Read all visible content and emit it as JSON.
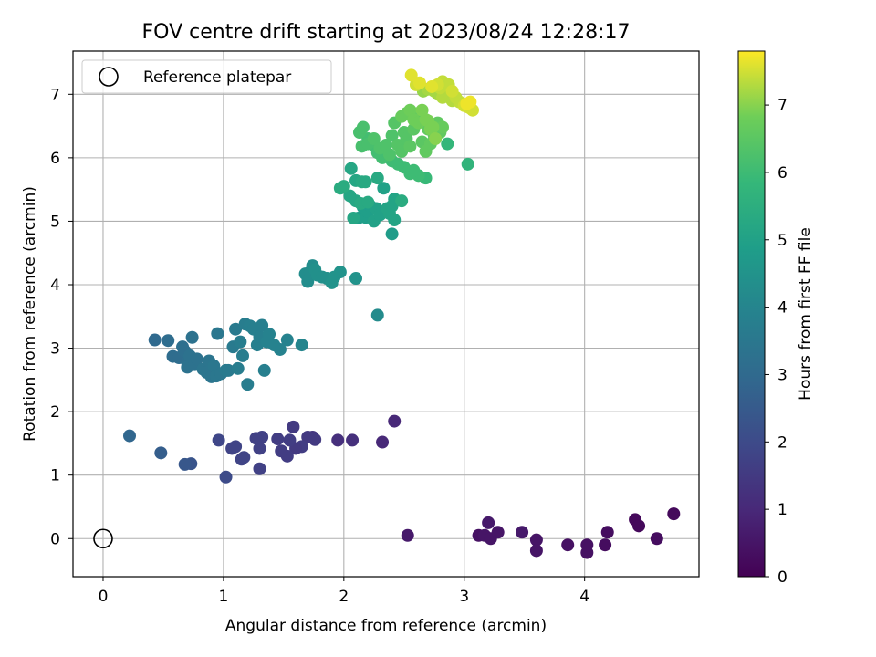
{
  "chart_data": {
    "type": "scatter",
    "title": "FOV centre drift starting at 2023/08/24 12:28:17",
    "xlabel": "Angular distance from reference (arcmin)",
    "ylabel": "Rotation from reference (arcmin)",
    "xlim": [
      -0.25,
      4.95
    ],
    "ylim": [
      -0.6,
      7.68
    ],
    "xticks": [
      0,
      1,
      2,
      3,
      4
    ],
    "yticks": [
      0,
      1,
      2,
      3,
      4,
      5,
      6,
      7
    ],
    "grid": true,
    "legend": {
      "position": "top-left",
      "entries": [
        "Reference platepar"
      ]
    },
    "colorbar": {
      "label": "Hours from first FF file",
      "range": [
        0,
        7.8
      ],
      "ticks": [
        0,
        1,
        2,
        3,
        4,
        5,
        6,
        7
      ],
      "colormap": "viridis"
    },
    "reference_point": {
      "name": "Reference platepar",
      "x": 0,
      "y": 0
    },
    "series": [
      {
        "color_by": "Hours from first FF file",
        "points": [
          [
            2.53,
            0.05,
            0.6
          ],
          [
            3.12,
            0.05,
            0.4
          ],
          [
            3.17,
            0.05,
            0.5
          ],
          [
            3.2,
            0.25,
            0.6
          ],
          [
            3.22,
            0.0,
            0.5
          ],
          [
            3.28,
            0.1,
            0.5
          ],
          [
            3.48,
            0.1,
            0.6
          ],
          [
            3.6,
            -0.02,
            0.5
          ],
          [
            3.6,
            -0.19,
            0.5
          ],
          [
            3.86,
            -0.1,
            0.4
          ],
          [
            4.02,
            -0.22,
            0.4
          ],
          [
            4.02,
            -0.1,
            0.4
          ],
          [
            4.17,
            -0.1,
            0.3
          ],
          [
            4.19,
            0.1,
            0.3
          ],
          [
            4.42,
            0.3,
            0.2
          ],
          [
            4.45,
            0.2,
            0.2
          ],
          [
            4.6,
            0.0,
            0.3
          ],
          [
            4.74,
            0.39,
            0.2
          ],
          [
            2.32,
            1.52,
            1.0
          ],
          [
            2.42,
            1.85,
            1.0
          ],
          [
            2.07,
            1.55,
            1.2
          ],
          [
            1.95,
            1.55,
            1.2
          ],
          [
            1.74,
            1.6,
            1.4
          ],
          [
            1.76,
            1.56,
            1.5
          ],
          [
            1.7,
            1.6,
            1.5
          ],
          [
            1.65,
            1.45,
            1.6
          ],
          [
            1.6,
            1.42,
            1.5
          ],
          [
            1.58,
            1.76,
            1.5
          ],
          [
            1.55,
            1.55,
            1.6
          ],
          [
            1.53,
            1.3,
            1.6
          ],
          [
            1.48,
            1.38,
            1.6
          ],
          [
            1.45,
            1.57,
            1.6
          ],
          [
            1.32,
            1.6,
            1.7
          ],
          [
            1.3,
            1.42,
            1.7
          ],
          [
            1.3,
            1.1,
            1.7
          ],
          [
            1.27,
            1.58,
            1.7
          ],
          [
            1.17,
            1.28,
            1.8
          ],
          [
            1.15,
            1.25,
            1.8
          ],
          [
            1.1,
            1.45,
            1.8
          ],
          [
            1.07,
            1.42,
            1.8
          ],
          [
            0.96,
            1.55,
            1.9
          ],
          [
            1.02,
            0.97,
            2.0
          ],
          [
            0.73,
            1.18,
            2.3
          ],
          [
            0.68,
            1.17,
            2.4
          ],
          [
            0.48,
            1.35,
            2.6
          ],
          [
            0.22,
            1.62,
            2.9
          ],
          [
            0.43,
            3.13,
            3.0
          ],
          [
            0.54,
            3.12,
            3.1
          ],
          [
            0.58,
            2.87,
            3.1
          ],
          [
            0.63,
            2.85,
            3.1
          ],
          [
            0.66,
            3.02,
            3.2
          ],
          [
            0.68,
            2.95,
            3.2
          ],
          [
            0.7,
            2.78,
            3.2
          ],
          [
            0.7,
            2.7,
            3.3
          ],
          [
            0.72,
            2.88,
            3.3
          ],
          [
            0.74,
            3.17,
            3.3
          ],
          [
            0.76,
            2.74,
            3.3
          ],
          [
            0.78,
            2.83,
            3.3
          ],
          [
            0.83,
            2.67,
            3.4
          ],
          [
            0.86,
            2.62,
            3.4
          ],
          [
            0.88,
            2.8,
            3.4
          ],
          [
            0.9,
            2.55,
            3.4
          ],
          [
            0.92,
            2.72,
            3.5
          ],
          [
            0.94,
            2.56,
            3.5
          ],
          [
            0.95,
            3.23,
            3.5
          ],
          [
            0.98,
            2.6,
            3.5
          ],
          [
            1.02,
            2.65,
            3.6
          ],
          [
            1.04,
            2.65,
            3.6
          ],
          [
            1.08,
            3.02,
            3.6
          ],
          [
            1.1,
            3.3,
            3.6
          ],
          [
            1.12,
            2.68,
            3.7
          ],
          [
            1.14,
            3.1,
            3.7
          ],
          [
            1.16,
            2.88,
            3.7
          ],
          [
            1.18,
            3.38,
            3.7
          ],
          [
            1.2,
            2.43,
            3.7
          ],
          [
            1.22,
            3.35,
            3.8
          ],
          [
            1.25,
            3.3,
            3.8
          ],
          [
            1.28,
            3.05,
            3.8
          ],
          [
            1.3,
            3.18,
            3.8
          ],
          [
            1.32,
            3.36,
            3.8
          ],
          [
            1.34,
            2.65,
            3.8
          ],
          [
            1.36,
            3.1,
            3.9
          ],
          [
            1.38,
            3.22,
            3.9
          ],
          [
            1.42,
            3.05,
            3.9
          ],
          [
            1.47,
            2.98,
            3.9
          ],
          [
            1.53,
            3.13,
            3.9
          ],
          [
            1.65,
            3.05,
            4.0
          ],
          [
            2.28,
            3.52,
            4.2
          ],
          [
            1.68,
            4.17,
            4.3
          ],
          [
            1.7,
            4.05,
            4.3
          ],
          [
            1.72,
            4.2,
            4.3
          ],
          [
            1.74,
            4.3,
            4.3
          ],
          [
            1.76,
            4.24,
            4.4
          ],
          [
            1.78,
            4.15,
            4.4
          ],
          [
            1.82,
            4.12,
            4.4
          ],
          [
            1.86,
            4.1,
            4.4
          ],
          [
            1.9,
            4.03,
            4.5
          ],
          [
            1.92,
            4.12,
            4.5
          ],
          [
            1.97,
            4.2,
            4.5
          ],
          [
            2.1,
            4.1,
            4.5
          ],
          [
            2.4,
            4.8,
            4.8
          ],
          [
            2.12,
            5.05,
            4.8
          ],
          [
            2.16,
            5.22,
            4.9
          ],
          [
            2.18,
            5.06,
            4.9
          ],
          [
            2.2,
            5.15,
            4.9
          ],
          [
            2.22,
            5.24,
            4.9
          ],
          [
            2.25,
            5.0,
            5.0
          ],
          [
            2.27,
            5.2,
            5.0
          ],
          [
            2.3,
            5.1,
            5.0
          ],
          [
            2.33,
            5.52,
            5.0
          ],
          [
            2.36,
            5.2,
            5.1
          ],
          [
            2.38,
            5.12,
            5.1
          ],
          [
            2.4,
            5.24,
            5.1
          ],
          [
            2.42,
            5.35,
            5.1
          ],
          [
            2.42,
            5.02,
            5.1
          ],
          [
            2.05,
            5.4,
            5.2
          ],
          [
            2.06,
            5.83,
            5.2
          ],
          [
            2.08,
            5.05,
            5.2
          ],
          [
            2.1,
            5.32,
            5.2
          ],
          [
            2.1,
            5.64,
            5.2
          ],
          [
            2.14,
            5.28,
            5.3
          ],
          [
            2.15,
            5.62,
            5.3
          ],
          [
            2.18,
            5.62,
            5.3
          ],
          [
            2.2,
            5.3,
            5.3
          ],
          [
            2.28,
            5.68,
            5.3
          ],
          [
            2.0,
            5.55,
            5.4
          ],
          [
            1.97,
            5.52,
            5.4
          ],
          [
            2.48,
            5.32,
            5.4
          ],
          [
            3.03,
            5.9,
            5.7
          ],
          [
            2.86,
            6.22,
            5.8
          ],
          [
            2.68,
            5.68,
            5.9
          ],
          [
            2.62,
            5.72,
            6.0
          ],
          [
            2.58,
            5.8,
            6.0
          ],
          [
            2.55,
            5.75,
            6.0
          ],
          [
            2.5,
            5.85,
            6.0
          ],
          [
            2.45,
            5.9,
            6.0
          ],
          [
            2.4,
            5.95,
            6.0
          ],
          [
            2.32,
            6.0,
            6.1
          ],
          [
            2.28,
            6.08,
            6.1
          ],
          [
            2.25,
            6.2,
            6.1
          ],
          [
            2.2,
            6.3,
            6.1
          ],
          [
            2.15,
            6.18,
            6.2
          ],
          [
            2.13,
            6.4,
            6.2
          ],
          [
            2.16,
            6.48,
            6.2
          ],
          [
            2.2,
            6.22,
            6.2
          ],
          [
            2.25,
            6.3,
            6.3
          ],
          [
            2.3,
            6.15,
            6.3
          ],
          [
            2.35,
            6.2,
            6.3
          ],
          [
            2.38,
            6.05,
            6.3
          ],
          [
            2.4,
            6.35,
            6.3
          ],
          [
            2.42,
            6.55,
            6.4
          ],
          [
            2.45,
            6.2,
            6.4
          ],
          [
            2.48,
            6.1,
            6.4
          ],
          [
            2.5,
            6.4,
            6.4
          ],
          [
            2.52,
            6.3,
            6.4
          ],
          [
            2.55,
            6.18,
            6.5
          ],
          [
            2.58,
            6.45,
            6.5
          ],
          [
            2.6,
            6.55,
            6.5
          ],
          [
            2.62,
            6.7,
            6.5
          ],
          [
            2.65,
            6.25,
            6.5
          ],
          [
            2.68,
            6.1,
            6.6
          ],
          [
            2.7,
            6.45,
            6.6
          ],
          [
            2.72,
            6.22,
            6.6
          ],
          [
            2.75,
            6.35,
            6.6
          ],
          [
            2.78,
            6.55,
            6.6
          ],
          [
            2.8,
            6.4,
            6.6
          ],
          [
            2.82,
            6.48,
            6.7
          ],
          [
            2.48,
            6.65,
            6.7
          ],
          [
            2.52,
            6.7,
            6.7
          ],
          [
            2.55,
            6.75,
            6.8
          ],
          [
            2.58,
            6.6,
            6.8
          ],
          [
            2.62,
            6.55,
            6.8
          ],
          [
            2.65,
            6.75,
            6.9
          ],
          [
            2.68,
            6.6,
            6.9
          ],
          [
            2.7,
            6.58,
            6.9
          ],
          [
            2.72,
            6.45,
            6.9
          ],
          [
            2.74,
            6.48,
            6.9
          ],
          [
            2.76,
            6.3,
            7.0
          ],
          [
            2.66,
            7.05,
            7.1
          ],
          [
            2.7,
            7.08,
            7.2
          ],
          [
            2.75,
            7.05,
            7.2
          ],
          [
            2.78,
            7.0,
            7.2
          ],
          [
            2.82,
            6.95,
            7.3
          ],
          [
            2.85,
            7.0,
            7.3
          ],
          [
            2.88,
            6.95,
            7.3
          ],
          [
            2.9,
            6.9,
            7.3
          ],
          [
            2.93,
            6.95,
            7.4
          ],
          [
            2.96,
            6.88,
            7.4
          ],
          [
            3.0,
            6.82,
            7.5
          ],
          [
            3.03,
            6.8,
            7.5
          ],
          [
            3.05,
            6.78,
            7.5
          ],
          [
            3.07,
            6.75,
            7.5
          ],
          [
            2.8,
            7.1,
            7.4
          ],
          [
            2.82,
            7.2,
            7.4
          ],
          [
            2.87,
            7.15,
            7.4
          ],
          [
            2.9,
            7.05,
            7.5
          ],
          [
            2.78,
            7.15,
            7.5
          ],
          [
            2.6,
            7.15,
            7.5
          ],
          [
            2.63,
            7.18,
            7.6
          ],
          [
            2.56,
            7.3,
            7.6
          ],
          [
            2.73,
            7.12,
            7.6
          ],
          [
            3.02,
            6.85,
            7.7
          ],
          [
            3.05,
            6.88,
            7.7
          ]
        ]
      }
    ]
  }
}
